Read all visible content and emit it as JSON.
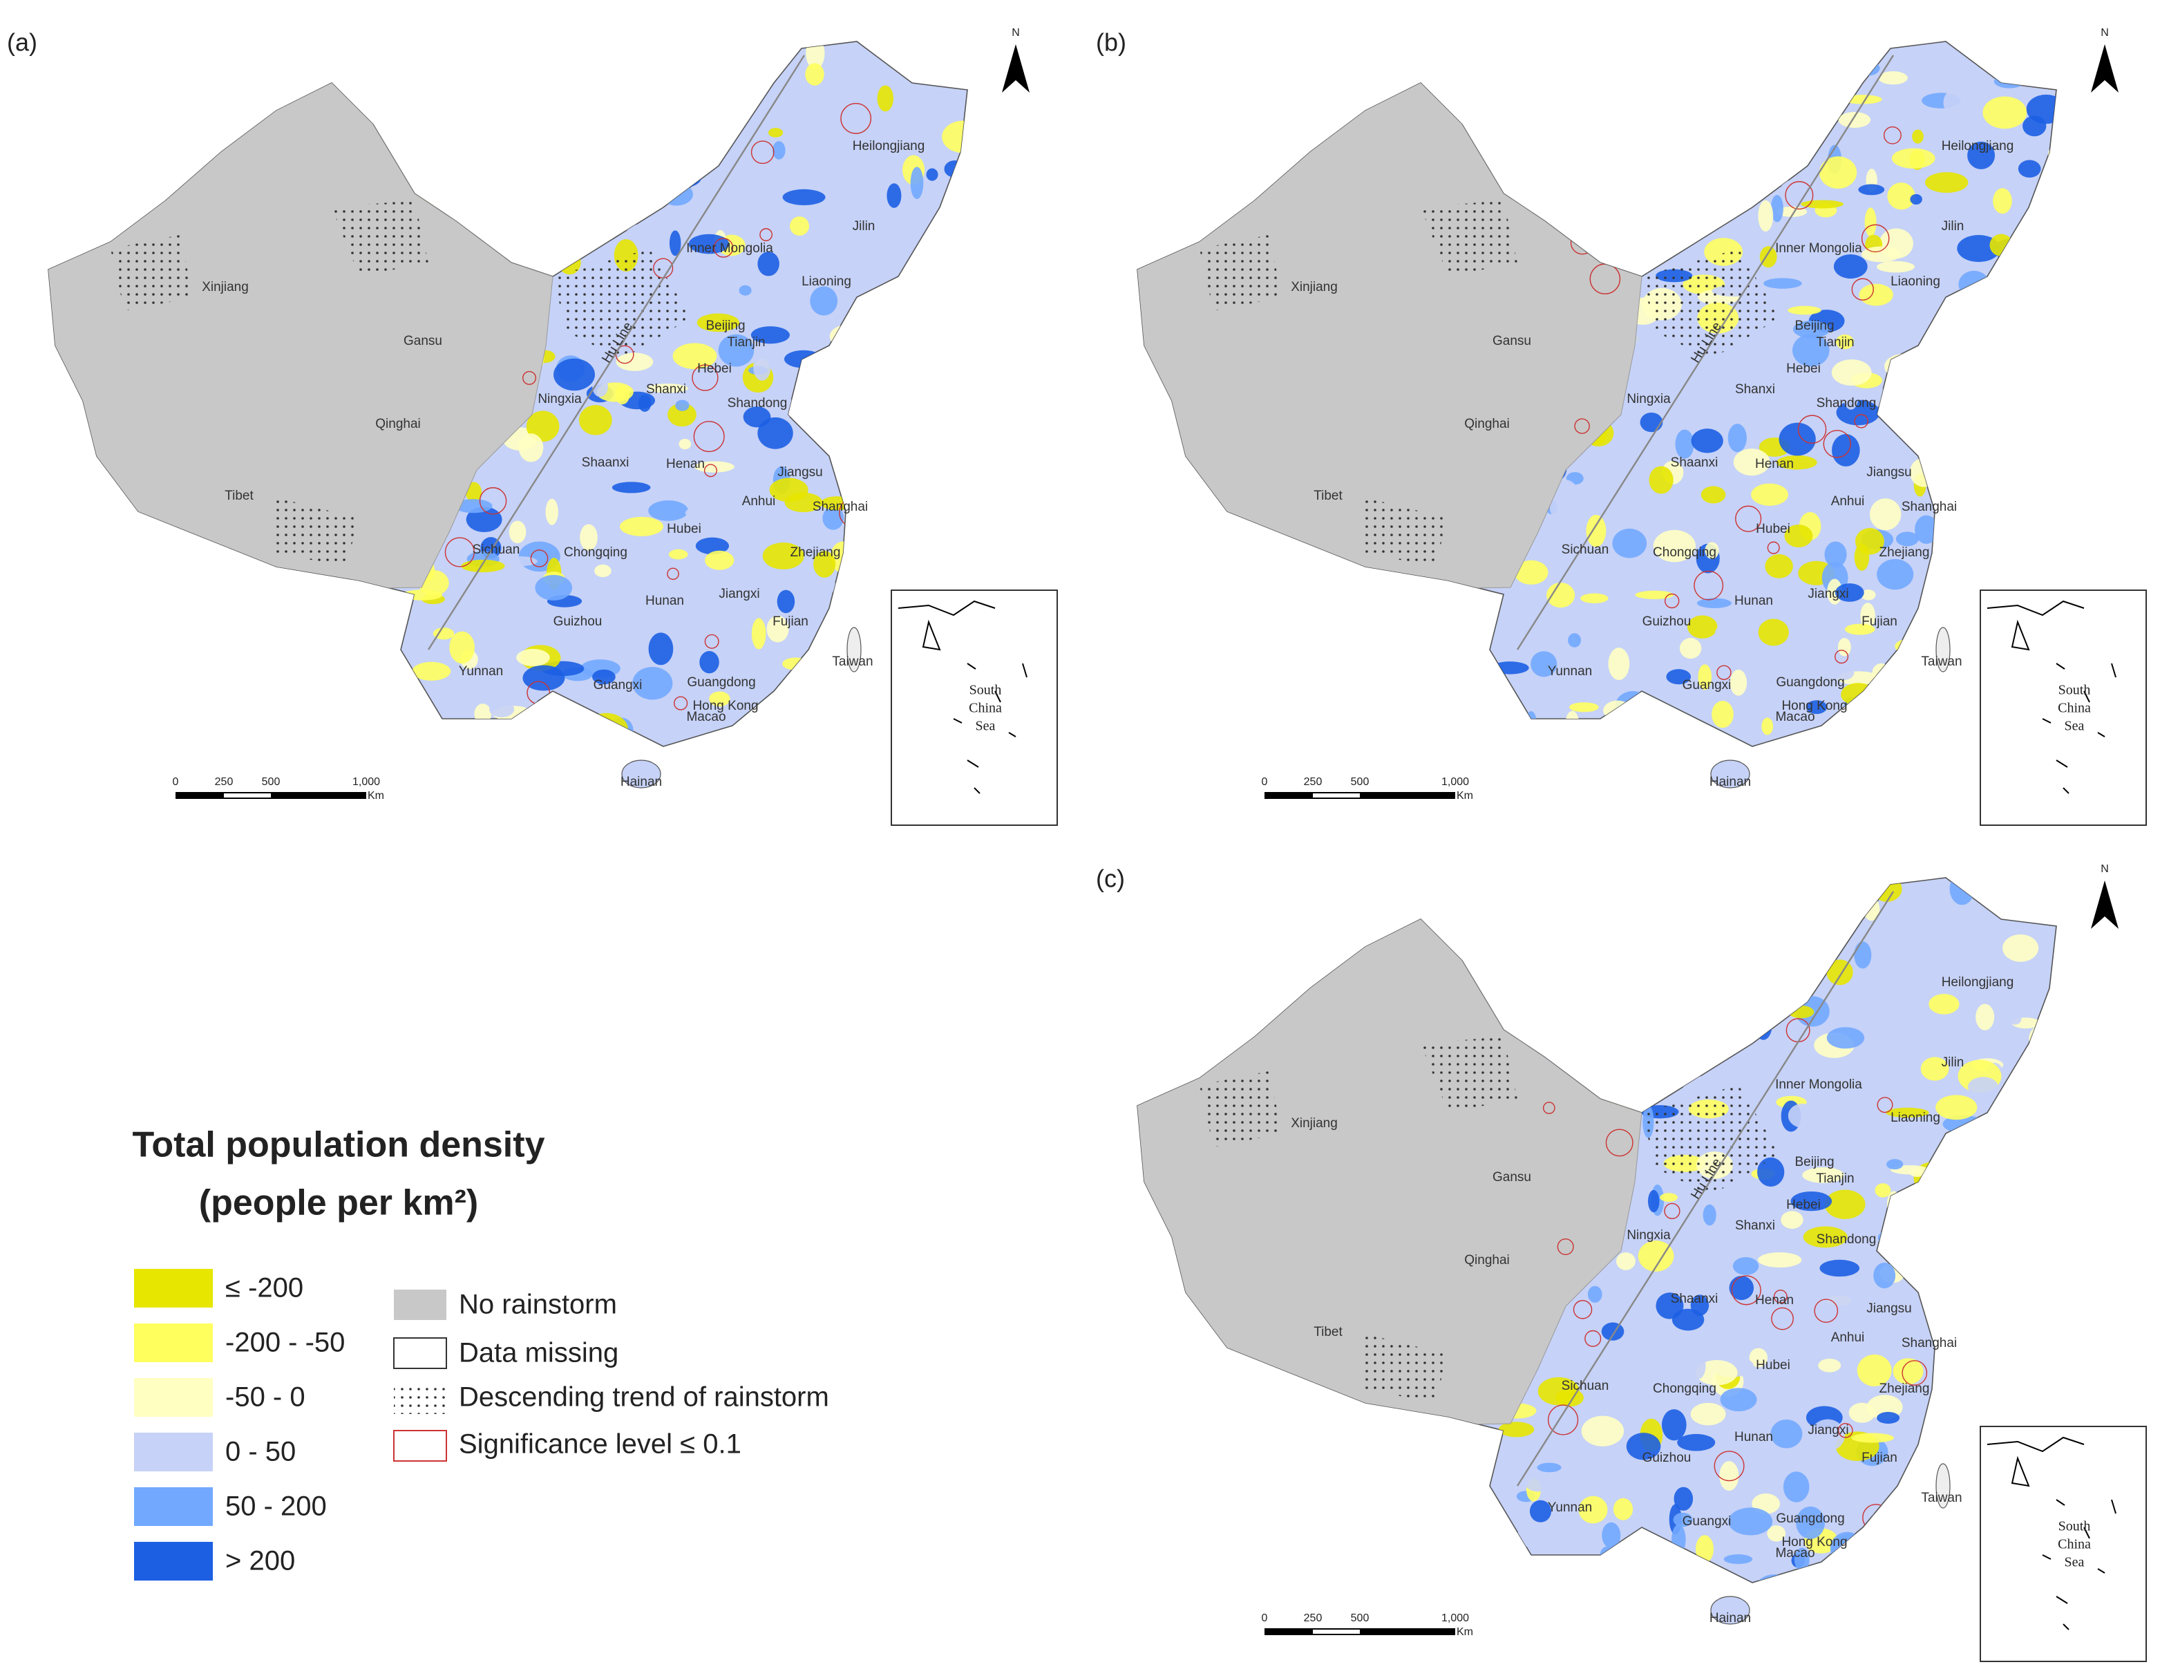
{
  "panels": [
    {
      "label": "(a)"
    },
    {
      "label": "(b)"
    },
    {
      "label": "(c)"
    }
  ],
  "map": {
    "place_names": [
      "Xinjiang",
      "Tibet",
      "Qinghai",
      "Gansu",
      "Ningxia",
      "Inner Mongolia",
      "Heilongjiang",
      "Jilin",
      "Liaoning",
      "Beijing",
      "Tianjin",
      "Hebei",
      "Shanxi",
      "Shandong",
      "Shaanxi",
      "Henan",
      "Jiangsu",
      "Anhui",
      "Shanghai",
      "Hubei",
      "Sichuan",
      "Chongqing",
      "Zhejiang",
      "Hunan",
      "Jiangxi",
      "Guizhou",
      "Fujian",
      "Yunnan",
      "Guangxi",
      "Guangdong",
      "Hong Kong",
      "Macao",
      "Taiwan",
      "Hainan"
    ],
    "hu_line": "Hu Line",
    "north": "N",
    "scale_labels": [
      "0",
      "250",
      "500",
      "1,000",
      "Km"
    ],
    "inset_label": [
      "South",
      "China",
      "Sea"
    ]
  },
  "legend": {
    "title": [
      "Total population density",
      "(people per km²)"
    ],
    "classes": [
      {
        "label": "≤ -200",
        "color": "#e6e600"
      },
      {
        "label": "-200 - -50",
        "color": "#ffff5e"
      },
      {
        "label": "-50 - 0",
        "color": "#ffffc2"
      },
      {
        "label": "0 - 50",
        "color": "#c6d2f7"
      },
      {
        "label": "50 - 200",
        "color": "#72a9ff"
      },
      {
        "label": "> 200",
        "color": "#1c5fe3"
      }
    ],
    "items": [
      "No rainstorm",
      "Data missing",
      "Descending trend of rainstorm",
      "Significance level  ≤  0.1"
    ]
  }
}
